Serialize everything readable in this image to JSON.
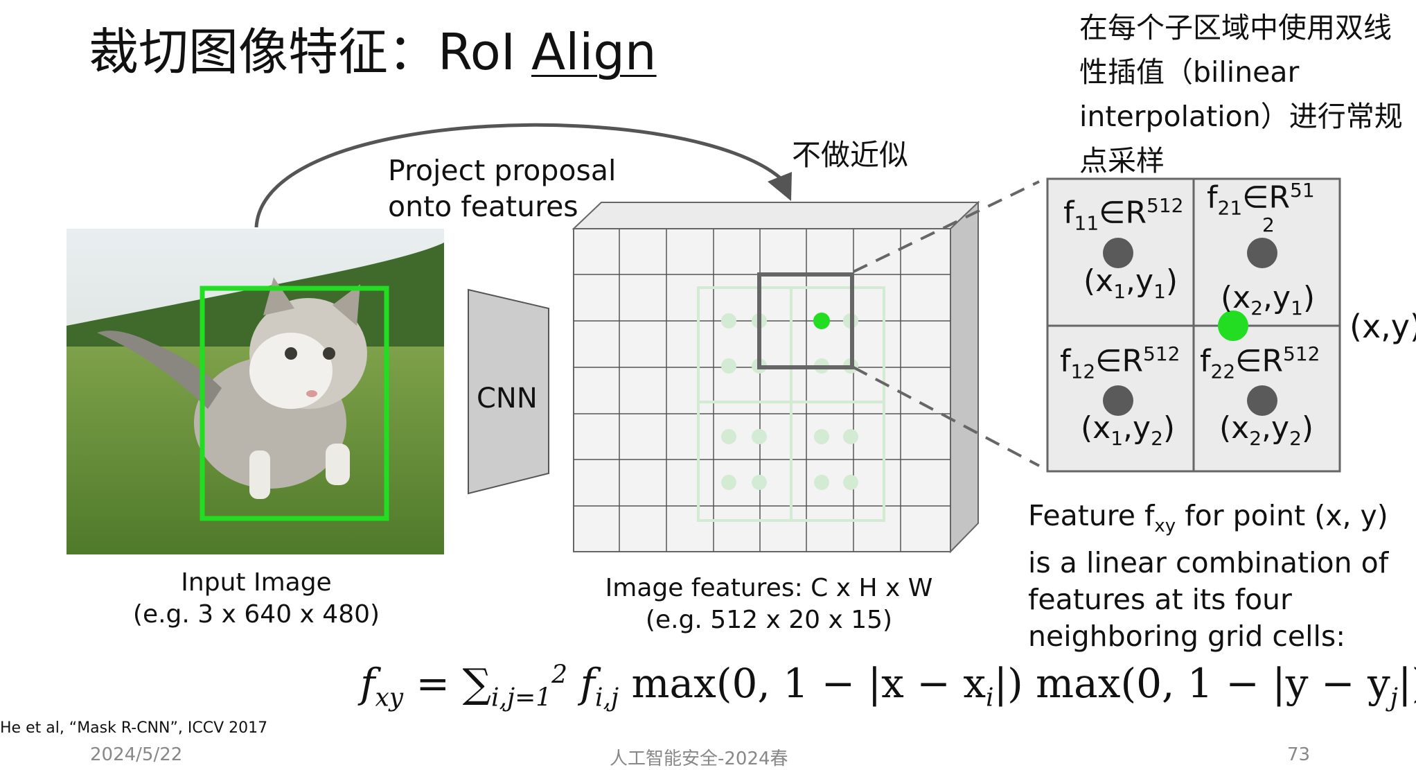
{
  "title": {
    "prefix": "裁切图像特征：RoI ",
    "underlined": "Align"
  },
  "bilinear_note": "在每个子区域中使用双线性插值（bilinear interpolation）进行常规点采样",
  "no_approx_label": "不做近似",
  "project_label": {
    "line1": "Project proposal",
    "line2": "onto features"
  },
  "cnn_label": "CNN",
  "input_caption": {
    "line1": "Input Image",
    "line2": "(e.g. 3 x 640 x 480)"
  },
  "features_caption": {
    "line1": "Image features: C x H x W",
    "line2": "(e.g. 512 x 20 x 15)"
  },
  "grid_cells": {
    "f11": {
      "f": "f",
      "sub": "11",
      "in": "∈R",
      "sup": "512",
      "coord": "(x",
      "csub1": "1",
      "cmid": ",y",
      "csub2": "1",
      "cend": ")"
    },
    "f21": {
      "f": "f",
      "sub": "21",
      "in": "∈R",
      "sup": "51",
      "sup2": "2",
      "coord": "(x",
      "csub1": "2",
      "cmid": ",y",
      "csub2": "1",
      "cend": ")"
    },
    "f12": {
      "f": "f",
      "sub": "12",
      "in": "∈R",
      "sup": "512",
      "coord": "(x",
      "csub1": "1",
      "cmid": ",y",
      "csub2": "2",
      "cend": ")"
    },
    "f22": {
      "f": "f",
      "sub": "22",
      "in": "∈R",
      "sup": "512",
      "coord": "(x",
      "csub1": "2",
      "cmid": ",y",
      "csub2": "2",
      "cend": ")"
    }
  },
  "point_label": "(x,y)",
  "description": {
    "pre": "Feature f",
    "sub": "xy",
    "post": " for point (x, y) is a linear combination of features at its four neighboring grid cells:"
  },
  "formula": {
    "lhs": "f",
    "lhs_sub": "xy",
    "eq": " = ∑",
    "sum_sub": "i,j=1",
    "sum_sup": "2",
    "body": " f",
    "body_sub": "i,j",
    "rest": " max(0, 1 − |x − x",
    "x_sub": "i",
    "rest2": "|) max(0, 1 − |y − y",
    "y_sub": "j",
    "rest3": "|)"
  },
  "citation": "He et al, “Mask R-CNN”, ICCV 2017",
  "footer": {
    "date": "2024/5/22",
    "course": "人工智能安全-2024春",
    "page": "73"
  },
  "colors": {
    "roi_green": "#22dd22",
    "grid_line": "#555555",
    "faint_green": "#d3ead3",
    "dot_gray": "#5a5a5a"
  }
}
